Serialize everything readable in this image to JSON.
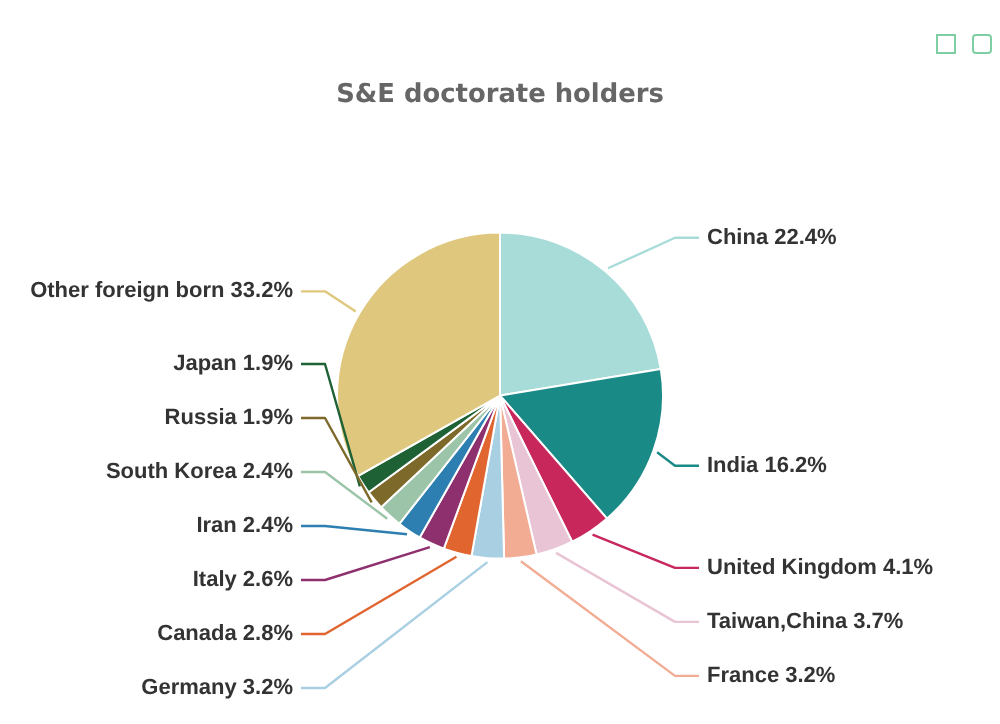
{
  "chart_data": {
    "type": "pie",
    "title": "S&E doctorate holders",
    "categories": [
      "China",
      "India",
      "United Kingdom",
      "Taiwan,China",
      "France",
      "Germany",
      "Canada",
      "Italy",
      "Iran",
      "South Korea",
      "Russia",
      "Japan",
      "Other foreign born"
    ],
    "values": [
      22.4,
      16.2,
      4.1,
      3.7,
      3.2,
      3.2,
      2.8,
      2.6,
      2.4,
      2.4,
      1.9,
      1.9,
      33.2
    ],
    "value_labels": [
      "22.4%",
      "16.2%",
      "4.1%",
      "3.7%",
      "3.2%",
      "3.2%",
      "2.8%",
      "2.6%",
      "2.4%",
      "2.4%",
      "1.9%",
      "1.9%",
      "33.2%"
    ],
    "colors": [
      "#a8dcd9",
      "#1a8a87",
      "#c8275c",
      "#e8c4d4",
      "#f2ac94",
      "#a9cfe3",
      "#e0652f",
      "#8e2f6e",
      "#2c7fb0",
      "#9cc4a8",
      "#7d6a2a",
      "#1d6135",
      "#dfc87e"
    ],
    "legend": false
  }
}
